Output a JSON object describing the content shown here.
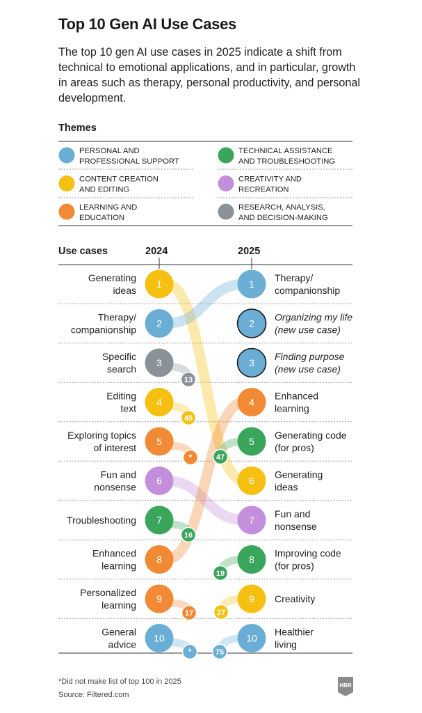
{
  "title": "Top 10 Gen AI Use Cases",
  "subtitle": "The top 10 gen AI use cases in 2025 indicate a shift from technical to emotional applications, and in particular, growth in areas such as therapy, personal productivity, and personal development.",
  "themes_heading": "Themes",
  "use_cases_heading": "Use cases",
  "year_left": "2024",
  "year_right": "2025",
  "colors": {
    "personal": "#6aaed6",
    "content": "#f5c011",
    "learning": "#f28a35",
    "technical": "#3aa65b",
    "creativity": "#c38fdc",
    "research": "#8a9298",
    "new_use_case_outline": "#1a1a1a"
  },
  "themes": [
    {
      "key": "personal",
      "line1": "PERSONAL AND",
      "line2": "PROFESSIONAL SUPPORT"
    },
    {
      "key": "technical",
      "line1": "TECHNICAL ASSISTANCE",
      "line2": "AND TROUBLESHOOTING"
    },
    {
      "key": "content",
      "line1": "CONTENT CREATION",
      "line2": "AND EDITING"
    },
    {
      "key": "creativity",
      "line1": "CREATIVITY AND",
      "line2": "RECREATION"
    },
    {
      "key": "learning",
      "line1": "LEARNING AND",
      "line2": "EDUCATION"
    },
    {
      "key": "research",
      "line1": "RESEARCH, ANALYSIS,",
      "line2": "AND DECISION-MAKING"
    }
  ],
  "rank_labels": [
    "1",
    "2",
    "3",
    "4",
    "5",
    "6",
    "7",
    "8",
    "9",
    "10"
  ],
  "left_2024": [
    {
      "rank": 1,
      "lines": [
        "Generating",
        "ideas"
      ],
      "theme": "content",
      "rank_2025": "6"
    },
    {
      "rank": 2,
      "lines": [
        "Therapy/",
        "companionship"
      ],
      "theme": "personal",
      "rank_2025": "1"
    },
    {
      "rank": 3,
      "lines": [
        "Specific",
        "search"
      ],
      "theme": "research",
      "rank_2025": "13"
    },
    {
      "rank": 4,
      "lines": [
        "Editing",
        "text"
      ],
      "theme": "content",
      "rank_2025": "45"
    },
    {
      "rank": 5,
      "lines": [
        "Exploring topics",
        "of interest"
      ],
      "theme": "learning",
      "rank_2025": "*"
    },
    {
      "rank": 6,
      "lines": [
        "Fun and",
        "nonsense"
      ],
      "theme": "creativity",
      "rank_2025": "7"
    },
    {
      "rank": 7,
      "lines": [
        "Troubleshooting"
      ],
      "theme": "technical",
      "rank_2025": "16"
    },
    {
      "rank": 8,
      "lines": [
        "Enhanced",
        "learning"
      ],
      "theme": "learning",
      "rank_2025": "4"
    },
    {
      "rank": 9,
      "lines": [
        "Personalized",
        "learning"
      ],
      "theme": "learning",
      "rank_2025": "17"
    },
    {
      "rank": 10,
      "lines": [
        "General",
        "advice"
      ],
      "theme": "personal",
      "rank_2025": "*"
    }
  ],
  "right_2025": [
    {
      "rank": 1,
      "lines": [
        "Therapy/",
        "companionship"
      ],
      "theme": "personal",
      "new": false,
      "rank_2024": "2"
    },
    {
      "rank": 2,
      "lines": [
        "Organizing my life",
        "(new use case)"
      ],
      "theme": "personal",
      "new": true
    },
    {
      "rank": 3,
      "lines": [
        "Finding purpose",
        "(new use case)"
      ],
      "theme": "personal",
      "new": true
    },
    {
      "rank": 4,
      "lines": [
        "Enhanced",
        "learning"
      ],
      "theme": "learning",
      "new": false,
      "rank_2024": "8"
    },
    {
      "rank": 5,
      "lines": [
        "Generating code",
        "(for pros)"
      ],
      "theme": "technical",
      "new": false,
      "rank_2024": "47"
    },
    {
      "rank": 6,
      "lines": [
        "Generating",
        "ideas"
      ],
      "theme": "content",
      "new": false,
      "rank_2024": "1"
    },
    {
      "rank": 7,
      "lines": [
        "Fun and",
        "nonsense"
      ],
      "theme": "creativity",
      "new": false,
      "rank_2024": "6"
    },
    {
      "rank": 8,
      "lines": [
        "Improving code",
        "(for pros)"
      ],
      "theme": "technical",
      "new": false,
      "rank_2024": "19"
    },
    {
      "rank": 9,
      "lines": [
        "Creativity"
      ],
      "theme": "content",
      "new": false,
      "rank_2024": "27"
    },
    {
      "rank": 10,
      "lines": [
        "Healthier",
        "living"
      ],
      "theme": "personal",
      "new": false,
      "rank_2024": "75"
    }
  ],
  "footnote": "*Did not make list of top 100 in 2025",
  "source": "Source: Filtered.com",
  "logo_text": "HBR"
}
